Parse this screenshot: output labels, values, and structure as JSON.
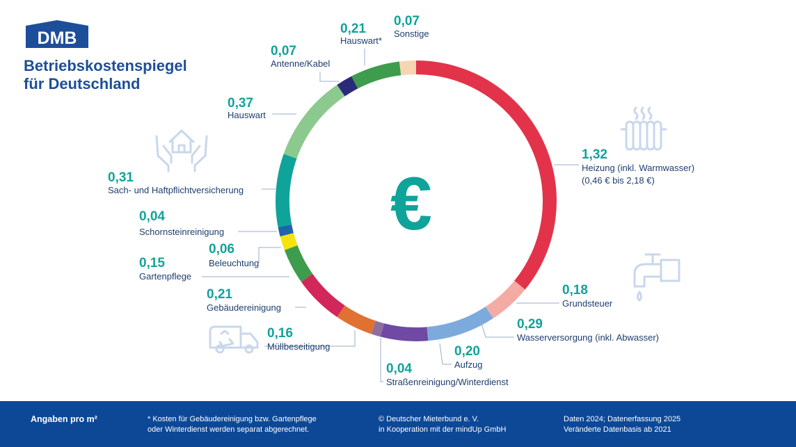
{
  "brand": {
    "logo_text": "DMB",
    "title_line1": "Betriebskostenspiegel",
    "title_line2": "für Deutschland"
  },
  "center_symbol": "€",
  "colors": {
    "brand": "#1d4e9a",
    "value_teal": "#10a39a",
    "label": "#1d3e6e",
    "footer_bg": "#0d4897",
    "icon": "#c9d7ec"
  },
  "icons": [
    "house-hands-icon",
    "radiator-icon",
    "faucet-icon",
    "garbage-truck-icon"
  ],
  "chart_data": {
    "type": "donut",
    "unit": "€ pro m²",
    "segments": [
      {
        "label": "Heizung (inkl. Warmwasser)",
        "sublabel": "(0,46 € bis 2,18 €)",
        "value": 1.32,
        "display": "1,32",
        "color": "#e3334a"
      },
      {
        "label": "Grundsteuer",
        "value": 0.18,
        "display": "0,18",
        "color": "#f3aba4"
      },
      {
        "label": "Wasserversorgung (inkl. Abwasser)",
        "value": 0.29,
        "display": "0,29",
        "color": "#7caadc"
      },
      {
        "label": "Aufzug",
        "value": 0.2,
        "display": "0,20",
        "color": "#6f49a3"
      },
      {
        "label": "Straßenreinigung/Winterdienst",
        "value": 0.04,
        "display": "0,04",
        "color": "#8c6f9f"
      },
      {
        "label": "Müllbeseitigung",
        "value": 0.16,
        "display": "0,16",
        "color": "#e07133"
      },
      {
        "label": "Gebäudereinigung",
        "value": 0.21,
        "display": "0,21",
        "color": "#d1275b"
      },
      {
        "label": "Gartenpflege",
        "value": 0.15,
        "display": "0,15",
        "color": "#3e9c4d"
      },
      {
        "label": "Beleuchtung",
        "value": 0.06,
        "display": "0,06",
        "color": "#f6e20c"
      },
      {
        "label": "Schornsteinreinigung",
        "value": 0.04,
        "display": "0,04",
        "color": "#1f63ad"
      },
      {
        "label": "Sach- und Haftpflichtversicherung",
        "value": 0.31,
        "display": "0,31",
        "color": "#10a39a"
      },
      {
        "label": "Hauswart",
        "value": 0.37,
        "display": "0,37",
        "color": "#8cc98e"
      },
      {
        "label": "Antenne/Kabel",
        "value": 0.07,
        "display": "0,07",
        "color": "#2b2a79"
      },
      {
        "label": "Hauswart*",
        "value": 0.21,
        "display": "0,21",
        "color": "#3e9c4d"
      },
      {
        "label": "Sonstige",
        "value": 0.07,
        "display": "0,07",
        "color": "#f6d5b2"
      }
    ]
  },
  "footer": {
    "unit_note": "Angaben pro m²",
    "footnote_line1": "* Kosten für Gebäudereinigung bzw. Gartenpflege",
    "footnote_line2": "oder Winterdienst werden separat abgerechnet.",
    "copyright_line1": "© Deutscher Mieterbund e. V.",
    "copyright_line2": "in Kooperation mit der mindUp GmbH",
    "data_line1": "Daten 2024; Datenerfassung 2025",
    "data_line2": "Veränderte Datenbasis ab 2021"
  }
}
